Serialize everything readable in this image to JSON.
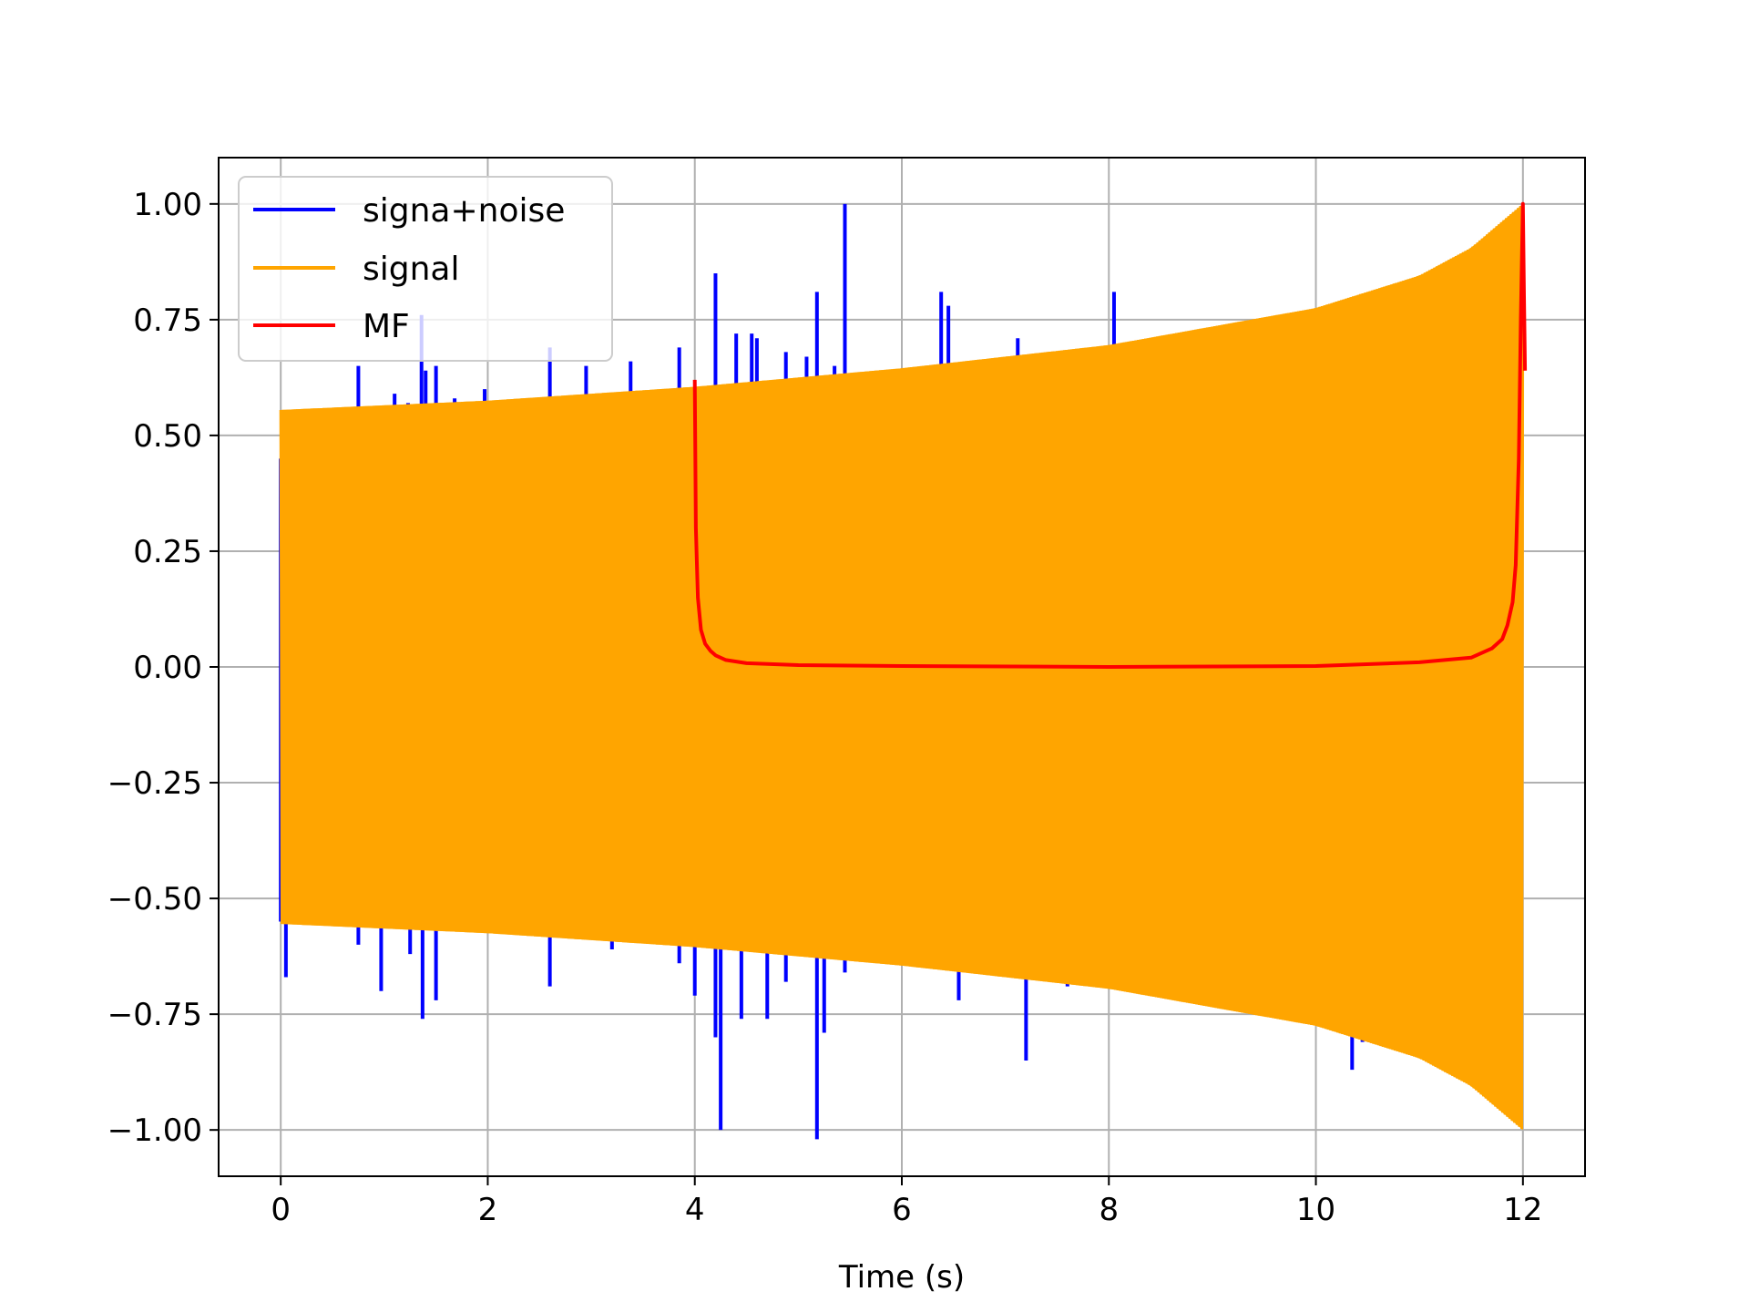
{
  "chart_data": {
    "type": "line",
    "title": "",
    "xlabel": "Time (s)",
    "ylabel": "",
    "xlim": [
      -0.6,
      12.6
    ],
    "ylim": [
      -1.1,
      1.1
    ],
    "xticks": [
      0,
      2,
      4,
      6,
      8,
      10,
      12
    ],
    "yticks": [
      1.0,
      0.75,
      0.5,
      0.25,
      0.0,
      -0.25,
      -0.5,
      -0.75,
      -1.0
    ],
    "xtick_labels": [
      "0",
      "2",
      "4",
      "6",
      "8",
      "10",
      "12"
    ],
    "ytick_labels": [
      "1.00",
      "0.75",
      "0.50",
      "0.25",
      "0.00",
      "−0.25",
      "−0.50",
      "−0.75",
      "−1.00"
    ],
    "grid": true,
    "legend_position": "upper-left",
    "series": [
      {
        "name": "signa+noise",
        "color": "#0000ff",
        "x_range": [
          0,
          12
        ],
        "spikes": [
          [
            0.75,
            0.65
          ],
          [
            0.97,
            0.55
          ],
          [
            1.1,
            0.59
          ],
          [
            1.23,
            0.57
          ],
          [
            1.3,
            0.55
          ],
          [
            1.36,
            0.76
          ],
          [
            1.4,
            0.64
          ],
          [
            1.5,
            0.65
          ],
          [
            1.68,
            0.58
          ],
          [
            1.97,
            0.6
          ],
          [
            2.6,
            0.69
          ],
          [
            2.95,
            0.65
          ],
          [
            3.38,
            0.66
          ],
          [
            3.78,
            0.6
          ],
          [
            3.85,
            0.69
          ],
          [
            4.2,
            0.85
          ],
          [
            4.4,
            0.72
          ],
          [
            4.55,
            0.72
          ],
          [
            4.6,
            0.71
          ],
          [
            4.88,
            0.68
          ],
          [
            5.08,
            0.67
          ],
          [
            5.18,
            0.81
          ],
          [
            5.35,
            0.65
          ],
          [
            5.45,
            1.0
          ],
          [
            6.38,
            0.81
          ],
          [
            6.45,
            0.78
          ],
          [
            7.12,
            0.71
          ],
          [
            8.05,
            0.81
          ],
          [
            0.05,
            -0.67
          ],
          [
            0.75,
            -0.6
          ],
          [
            0.97,
            -0.7
          ],
          [
            1.25,
            -0.62
          ],
          [
            1.37,
            -0.76
          ],
          [
            1.5,
            -0.72
          ],
          [
            2.6,
            -0.69
          ],
          [
            3.2,
            -0.61
          ],
          [
            3.85,
            -0.64
          ],
          [
            4.0,
            -0.71
          ],
          [
            4.2,
            -0.8
          ],
          [
            4.25,
            -1.0
          ],
          [
            4.45,
            -0.76
          ],
          [
            4.7,
            -0.76
          ],
          [
            4.88,
            -0.68
          ],
          [
            5.18,
            -1.02
          ],
          [
            5.25,
            -0.79
          ],
          [
            5.45,
            -0.66
          ],
          [
            6.55,
            -0.72
          ],
          [
            7.2,
            -0.85
          ],
          [
            7.6,
            -0.69
          ],
          [
            10.35,
            -0.87
          ],
          [
            10.45,
            -0.81
          ]
        ]
      },
      {
        "name": "signal",
        "color": "#ffa500",
        "x_range": [
          0,
          12
        ],
        "envelope": {
          "x": [
            0,
            2,
            4,
            6,
            8,
            10,
            11,
            11.5,
            12
          ],
          "amplitude": [
            0.555,
            0.575,
            0.605,
            0.645,
            0.695,
            0.775,
            0.845,
            0.905,
            1.0
          ]
        }
      },
      {
        "name": "MF",
        "color": "#ff0000",
        "points": {
          "x": [
            4.0,
            4.01,
            4.03,
            4.06,
            4.1,
            4.15,
            4.2,
            4.3,
            4.5,
            5.0,
            6.0,
            8.0,
            10.0,
            11.0,
            11.5,
            11.7,
            11.8,
            11.85,
            11.9,
            11.93,
            11.96,
            11.98,
            12.0,
            12.01,
            12.02
          ],
          "y": [
            0.62,
            0.3,
            0.15,
            0.08,
            0.05,
            0.035,
            0.025,
            0.015,
            0.008,
            0.004,
            0.002,
            0.0,
            0.002,
            0.01,
            0.02,
            0.04,
            0.06,
            0.09,
            0.14,
            0.22,
            0.45,
            0.75,
            1.0,
            0.8,
            0.64
          ]
        }
      }
    ]
  }
}
